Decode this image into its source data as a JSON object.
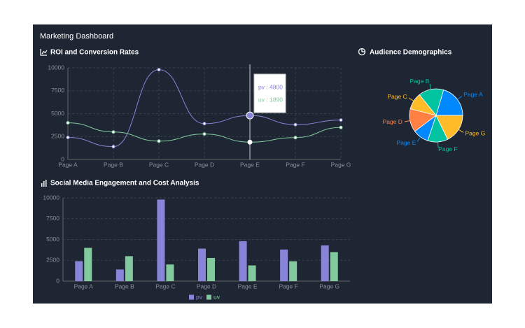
{
  "title": "Marketing Dashboard",
  "chart_data": [
    {
      "type": "line",
      "title": "ROI and Conversion Rates",
      "categories": [
        "Page A",
        "Page B",
        "Page C",
        "Page D",
        "Page E",
        "Page F",
        "Page G"
      ],
      "series": [
        {
          "name": "pv",
          "color": "#8884d8",
          "values": [
            2400,
            1398,
            9800,
            3908,
            4800,
            3800,
            4300
          ]
        },
        {
          "name": "uv",
          "color": "#82ca9d",
          "values": [
            4000,
            3000,
            2000,
            2780,
            1890,
            2390,
            3490
          ]
        }
      ],
      "ylim": [
        0,
        10000
      ],
      "yticks": [
        0,
        2500,
        5000,
        7500,
        10000
      ],
      "grid": true,
      "tooltip": {
        "lines": [
          "pv : 4800",
          "uv : 1890"
        ]
      }
    },
    {
      "type": "pie",
      "title": "Audience Demographics",
      "categories": [
        "Page A",
        "Page B",
        "Page C",
        "Page D",
        "Page E",
        "Page F",
        "Page G"
      ],
      "values": [
        4000,
        3000,
        2000,
        2780,
        1890,
        2390,
        3490
      ],
      "colors": [
        "#0088FE",
        "#00C49F",
        "#FFBB28",
        "#FF8042",
        "#0088FE",
        "#00C49F",
        "#FFBB28"
      ]
    },
    {
      "type": "bar",
      "title": "Social Media Engagement and Cost Analysis",
      "categories": [
        "Page A",
        "Page B",
        "Page C",
        "Page D",
        "Page E",
        "Page F",
        "Page G"
      ],
      "series": [
        {
          "name": "pv",
          "color": "#8884d8",
          "values": [
            2400,
            1398,
            9800,
            3908,
            4800,
            3800,
            4300
          ]
        },
        {
          "name": "uv",
          "color": "#82ca9d",
          "values": [
            4000,
            3000,
            2000,
            2780,
            1890,
            2390,
            3490
          ]
        }
      ],
      "ylim": [
        0,
        10000
      ],
      "yticks": [
        0,
        2500,
        5000,
        7500,
        10000
      ],
      "grid": true,
      "legend": "bottom"
    }
  ]
}
